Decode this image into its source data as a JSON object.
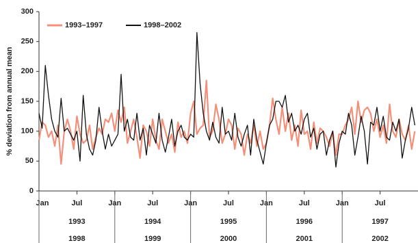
{
  "chart_data": {
    "type": "line",
    "y_label": "% deviation from annual mean",
    "ylim": [
      0,
      300
    ],
    "yticks": [
      0,
      50,
      100,
      150,
      200,
      250,
      300
    ],
    "grid": false,
    "legend": "top-left",
    "categories": [
      "Jan",
      null,
      null,
      null,
      null,
      null,
      null,
      null,
      null,
      null,
      null,
      null,
      "Jul",
      null,
      null,
      null,
      null,
      null,
      null,
      null,
      null,
      null,
      null,
      null,
      "Jan",
      null,
      null,
      null,
      null,
      null,
      null,
      null,
      null,
      null,
      null,
      null,
      "Jul",
      null,
      null,
      null,
      null,
      null,
      null,
      null,
      null,
      null,
      null,
      null,
      "Jan",
      null,
      null,
      null,
      null,
      null,
      null,
      null,
      null,
      null,
      null,
      null,
      "Jul",
      null,
      null,
      null,
      null,
      null,
      null,
      null,
      null,
      null,
      null,
      null,
      "Jan",
      null,
      null,
      null,
      null,
      null,
      null,
      null,
      null,
      null,
      null,
      null,
      "Jul",
      null,
      null,
      null,
      null,
      null,
      null,
      null,
      null,
      null,
      null,
      null,
      "Jan",
      null,
      null,
      null,
      null,
      null,
      null,
      null,
      null,
      null,
      null,
      null,
      "Jul",
      null,
      null,
      null,
      null,
      null,
      null,
      null,
      null,
      null,
      null,
      null
    ],
    "year_rows": [
      [
        "1993",
        "1994",
        "1995",
        "1996",
        "1997"
      ],
      [
        "1998",
        "1999",
        "2000",
        "2001",
        "2002"
      ]
    ],
    "series": [
      {
        "name": "1993–1997",
        "color": "#f4907a",
        "width": 2.2,
        "values": [
          85,
          115,
          110,
          90,
          100,
          75,
          110,
          45,
          100,
          120,
          100,
          70,
          125,
          95,
          80,
          85,
          110,
          70,
          90,
          105,
          95,
          120,
          115,
          130,
          100,
          135,
          115,
          140,
          80,
          100,
          120,
          90,
          55,
          110,
          100,
          75,
          120,
          85,
          70,
          120,
          100,
          80,
          95,
          65,
          115,
          90,
          100,
          80,
          130,
          150,
          95,
          105,
          110,
          185,
          90,
          100,
          145,
          120,
          80,
          95,
          120,
          110,
          70,
          105,
          95,
          60,
          95,
          80,
          110,
          75,
          100,
          70,
          80,
          110,
          155,
          120,
          95,
          140,
          100,
          130,
          85,
          110,
          75,
          135,
          95,
          100,
          70,
          115,
          80,
          105,
          100,
          90,
          75,
          100,
          60,
          95,
          95,
          110,
          120,
          140,
          95,
          150,
          115,
          135,
          140,
          130,
          100,
          120,
          90,
          110,
          80,
          145,
          100,
          90,
          120,
          95,
          85,
          110,
          70,
          100
        ]
      },
      {
        "name": "1998–2002",
        "color": "#111111",
        "width": 1.3,
        "values": [
          130,
          105,
          210,
          160,
          120,
          100,
          90,
          155,
          100,
          105,
          95,
          85,
          100,
          50,
          160,
          95,
          70,
          60,
          85,
          140,
          100,
          70,
          95,
          75,
          85,
          95,
          195,
          100,
          120,
          90,
          85,
          130,
          85,
          105,
          60,
          110,
          95,
          80,
          130,
          85,
          65,
          90,
          120,
          75,
          100,
          110,
          90,
          85,
          95,
          90,
          265,
          180,
          130,
          100,
          85,
          115,
          90,
          80,
          140,
          95,
          100,
          85,
          130,
          90,
          75,
          95,
          110,
          60,
          120,
          85,
          65,
          45,
          80,
          110,
          120,
          150,
          150,
          140,
          160,
          115,
          130,
          100,
          110,
          95,
          120,
          130,
          90,
          105,
          70,
          95,
          100,
          60,
          85,
          100,
          40,
          80,
          100,
          95,
          130,
          110,
          60,
          90,
          125,
          100,
          45,
          115,
          110,
          140,
          100,
          125,
          90,
          85,
          115,
          100,
          120,
          55,
          85,
          105,
          140,
          110
        ]
      }
    ]
  }
}
